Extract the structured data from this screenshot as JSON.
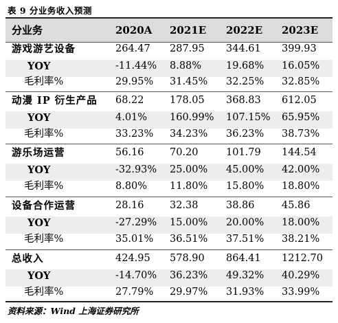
{
  "caption": "表 9 分业务收入预测",
  "header": {
    "segment": "分业务",
    "years": [
      "2020A",
      "2021E",
      "2022E",
      "2023E"
    ]
  },
  "groups": [
    {
      "label": "游戏游艺设备",
      "revenue": [
        "264.47",
        "287.95",
        "344.61",
        "399.93"
      ],
      "yoy_label": "YOY",
      "yoy": [
        "-11.44%",
        "8.88%",
        "19.68%",
        "16.05%"
      ],
      "gm_label": "毛利率%",
      "gm": [
        "29.95%",
        "31.45%",
        "32.25%",
        "32.85%"
      ]
    },
    {
      "label": "动漫 IP 衍生产品",
      "revenue": [
        "68.22",
        "178.05",
        "368.83",
        "612.05"
      ],
      "yoy_label": "YOY",
      "yoy": [
        "4.01%",
        "160.99%",
        "107.15%",
        "65.95%"
      ],
      "gm_label": "毛利率%",
      "gm": [
        "33.23%",
        "34.23%",
        "36.23%",
        "38.73%"
      ]
    },
    {
      "label": "游乐场运营",
      "revenue": [
        "56.16",
        "70.20",
        "101.79",
        "144.54"
      ],
      "yoy_label": "YOY",
      "yoy": [
        "-32.93%",
        "25.00%",
        "45.00%",
        "42.00%"
      ],
      "gm_label": "毛利率%",
      "gm": [
        "8.80%",
        "11.80%",
        "15.80%",
        "18.80%"
      ]
    },
    {
      "label": "设备合作运营",
      "revenue": [
        "28.16",
        "32.38",
        "38.86",
        "45.86"
      ],
      "yoy_label": "YOY",
      "yoy": [
        "-27.29%",
        "15.00%",
        "20.00%",
        "18.00%"
      ],
      "gm_label": "毛利率%",
      "gm": [
        "35.01%",
        "36.51%",
        "37.51%",
        "38.21%"
      ]
    },
    {
      "label": "总收入",
      "revenue": [
        "424.95",
        "578.90",
        "864.41",
        "1212.70"
      ],
      "yoy_label": "YOY",
      "yoy": [
        "-14.70%",
        "36.23%",
        "49.32%",
        "40.29%"
      ],
      "gm_label": "毛利率%",
      "gm": [
        "27.79%",
        "29.97%",
        "31.93%",
        "33.99%"
      ]
    }
  ],
  "source": "资料来源：Wind 上海证券研究所"
}
